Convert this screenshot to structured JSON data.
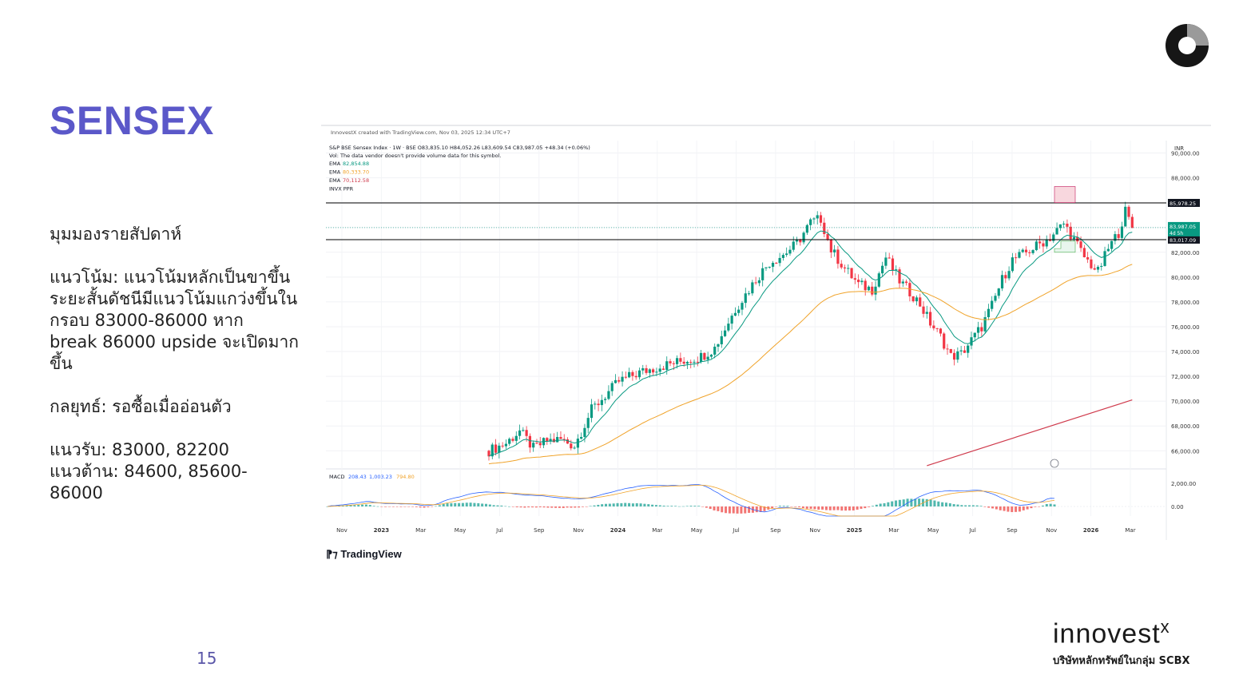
{
  "slide": {
    "title": "SENSEX",
    "paragraphs": [
      "มุมมองรายสัปดาห์",
      "แนวโน้ม: แนวโน้มหลักเป็นขาขึ้น\nระยะสั้นดัชนีมีแนวโน้มแกว่งขึ้นใน\nกรอบ 83000-86000 หาก\nbreak 86000 upside จะเปิดมาก\nขึ้น",
      "กลยุทธ์: รอซื้อเมื่ออ่อนตัว",
      "แนวรับ: 83000, 82200\nแนวต้าน: 84600, 85600-\n86000"
    ],
    "page_number": "15",
    "brand": {
      "name": "innovest",
      "suffix": "x",
      "subtitle": "บริษัทหลักทรัพย์ในกลุ่ม SCBX"
    }
  },
  "chart_data": {
    "type": "candlestick",
    "watermark_line": "InnovestX created with TradingView.com, Nov 03, 2025 12:34 UTC+7",
    "symbol_line": "S&P BSE Sensex Index · 1W · BSE  O83,835.10  H84,052.26  L83,609.54  C83,987.05  +48.34 (+0.06%)",
    "note_line": "Vol: The data vendor doesn't provide volume data for this symbol.",
    "indicators": [
      {
        "label": "EMA",
        "value": "82,854.88",
        "color": "#089981"
      },
      {
        "label": "EMA",
        "value": "80,333.70",
        "color": "#f0a32a"
      },
      {
        "label": "EMA",
        "value": "70,112.58",
        "color": "#cf3a4c"
      },
      {
        "label": "INVX PPR",
        "value": "",
        "color": "#555555"
      }
    ],
    "currency": "INR",
    "y_ticks": [
      "90,000.00",
      "88,000.00",
      "86,000.00",
      "84,000.00",
      "82,000.00",
      "80,000.00",
      "78,000.00",
      "76,000.00",
      "74,000.00",
      "72,000.00",
      "70,000.00",
      "68,000.00",
      "66,000.00"
    ],
    "y_tick_values": [
      90000,
      88000,
      86000,
      84000,
      82000,
      80000,
      78000,
      76000,
      74000,
      72000,
      70000,
      68000,
      66000
    ],
    "ylim": [
      64600,
      91000
    ],
    "x_labels": [
      "Nov",
      "2023",
      "Mar",
      "May",
      "Jul",
      "Sep",
      "Nov",
      "2024",
      "Mar",
      "May",
      "Jul",
      "Sep",
      "Nov",
      "2025",
      "Mar",
      "May",
      "Jul",
      "Sep",
      "Nov",
      "2026",
      "Mar"
    ],
    "horizontal_lines": [
      {
        "value": 85978.25,
        "label": "85,978.25",
        "color": "#000000"
      },
      {
        "value": 83017.09,
        "label": "83,017.09",
        "color": "#000000"
      }
    ],
    "last_price": {
      "value": 83987.05,
      "label": "83,987.05",
      "countdown": "4d 5h",
      "color": "#089981"
    },
    "macd": {
      "label": "MACD",
      "values": [
        "208.43",
        "1,003.23",
        "794.80"
      ],
      "y_ticks": [
        "2,000.00",
        "0.00"
      ],
      "y_tick_values": [
        2000,
        0
      ]
    },
    "footer": "TradingView"
  }
}
